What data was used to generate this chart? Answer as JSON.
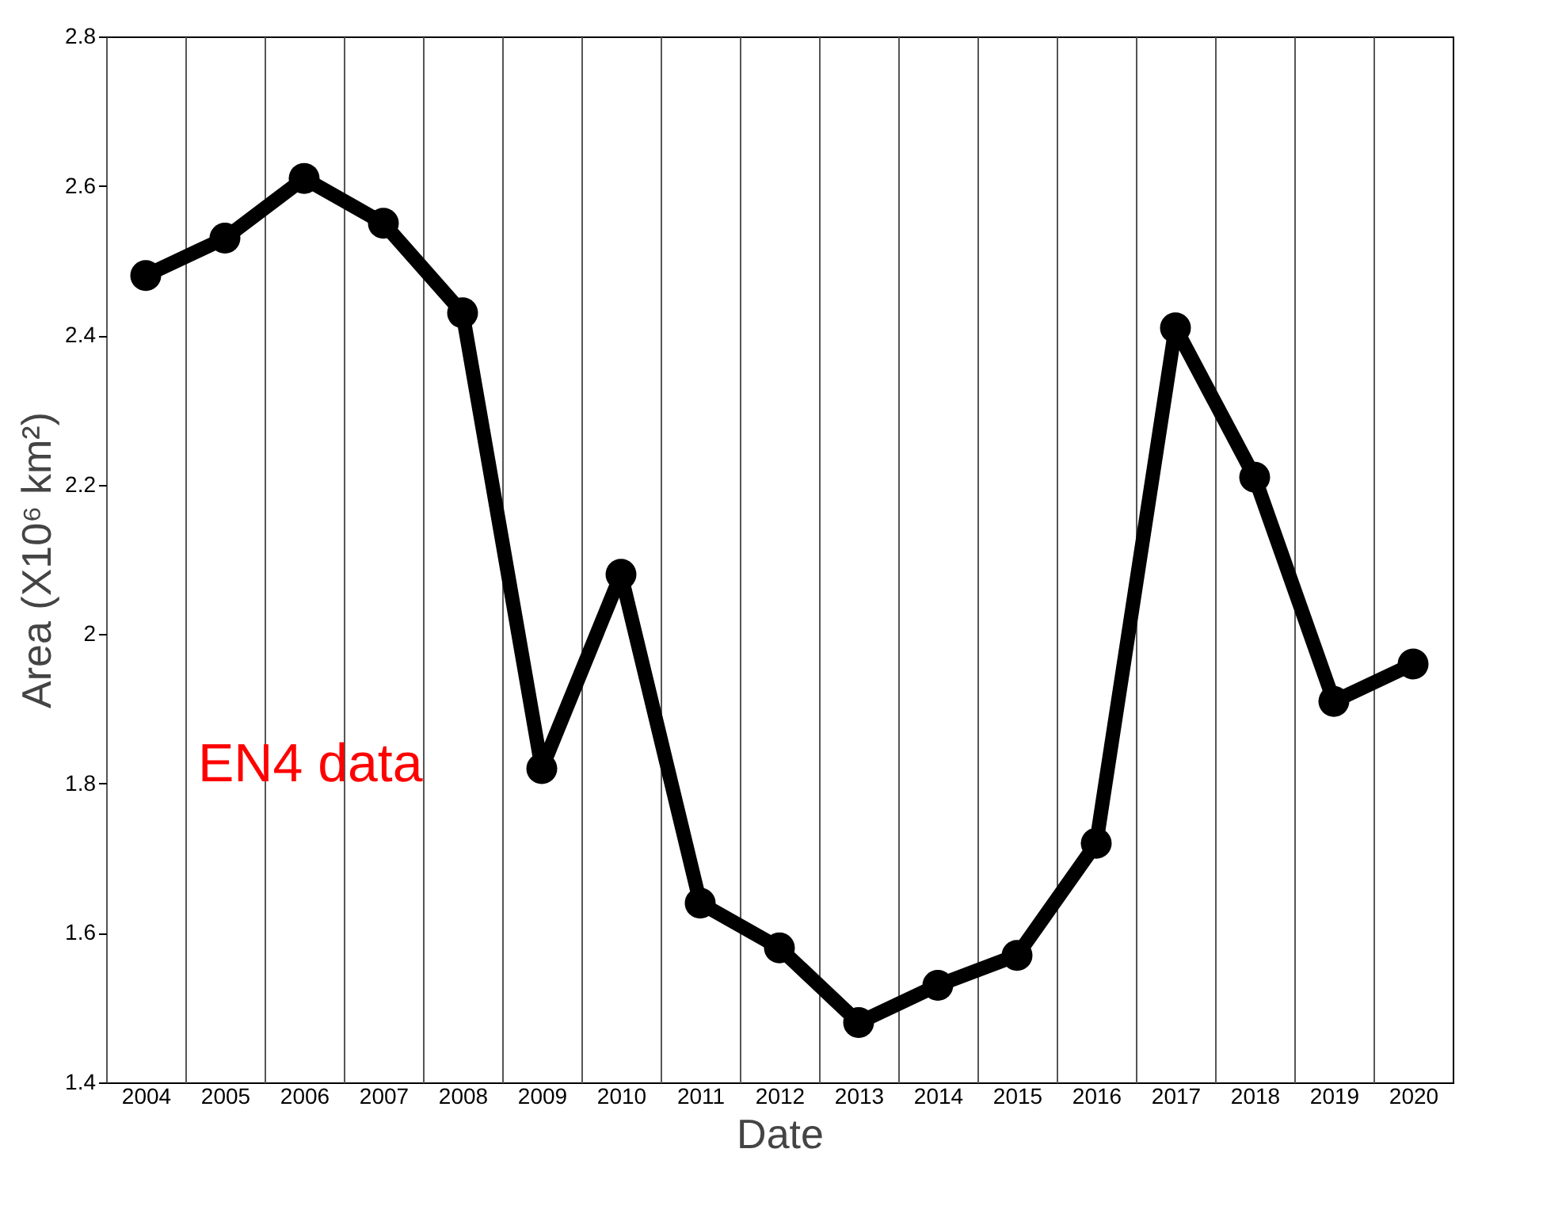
{
  "chart_data": {
    "type": "line",
    "xlabel": "Date",
    "ylabel": "Area (X10⁶ km²)",
    "categories": [
      "2004",
      "2005",
      "2006",
      "2007",
      "2008",
      "2009",
      "2010",
      "2011",
      "2012",
      "2013",
      "2014",
      "2015",
      "2016",
      "2017",
      "2018",
      "2019",
      "2020"
    ],
    "series": [
      {
        "color": "#000000",
        "values": [
          2.48,
          2.53,
          2.61,
          2.55,
          2.43,
          1.82,
          2.08,
          1.64,
          1.58,
          1.48,
          1.53,
          1.57,
          1.72,
          2.41,
          2.21,
          1.91,
          1.96
        ]
      }
    ],
    "ylim": [
      1.4,
      2.8
    ],
    "yticks": [
      1.4,
      1.6,
      1.8,
      {
        "value": 2,
        "label": "2"
      },
      2.2,
      2.4,
      2.6,
      2.8
    ],
    "grid": "x",
    "marker": "circle",
    "line_style": "solid",
    "annotations": [
      "EN4 data"
    ]
  }
}
